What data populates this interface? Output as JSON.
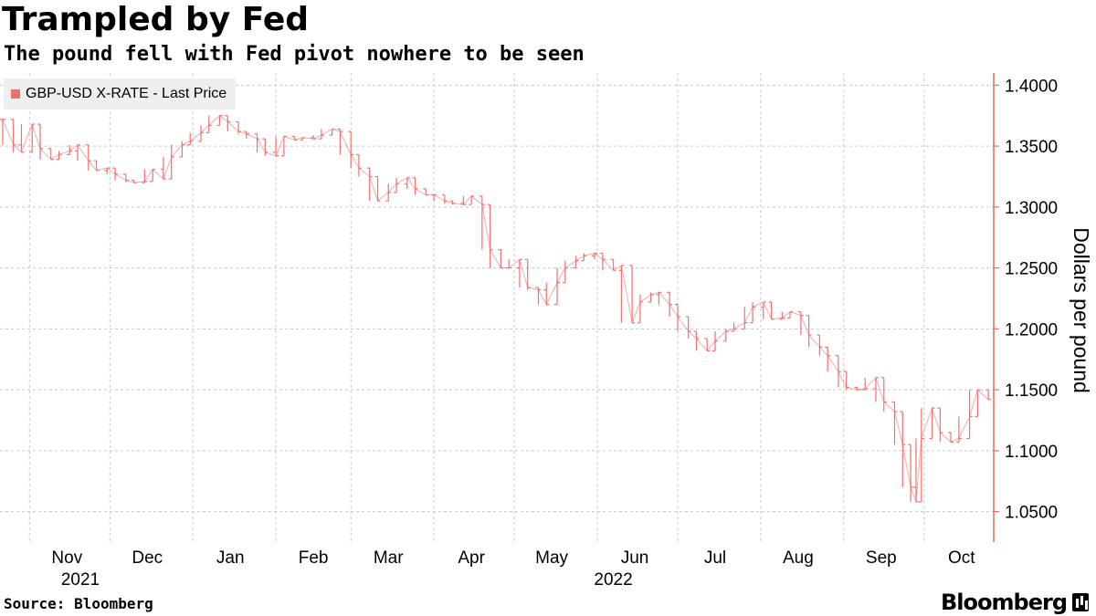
{
  "header": {
    "title": "Trampled by Fed",
    "subtitle": "The pound fell with Fed pivot nowhere to be seen"
  },
  "footer": {
    "source": "Source: Bloomberg",
    "brand": "Bloomberg"
  },
  "colors": {
    "series": "#f07070",
    "axis": "#e86a6a",
    "grid": "#c8c8c8"
  },
  "chart_data": {
    "type": "line",
    "title": "Trampled by Fed",
    "subtitle": "The pound fell with Fed pivot nowhere to be seen",
    "xlabel": "",
    "ylabel": "Dollars per pound",
    "ylim": [
      1.025,
      1.41
    ],
    "xlim": [
      "2021-10-21",
      "2022-10-27"
    ],
    "grid": true,
    "legend_position": "top-left",
    "y_ticks": [
      "1.4000",
      "1.3500",
      "1.3000",
      "1.2500",
      "1.2000",
      "1.1500",
      "1.1000",
      "1.0500"
    ],
    "y_tick_values": [
      1.4,
      1.35,
      1.3,
      1.25,
      1.2,
      1.15,
      1.1,
      1.05
    ],
    "x_ticks": [
      {
        "label": "Nov",
        "date": "2021-11-15"
      },
      {
        "label": "Dec",
        "date": "2021-12-15"
      },
      {
        "label": "Jan",
        "date": "2022-01-15"
      },
      {
        "label": "Feb",
        "date": "2022-02-15"
      },
      {
        "label": "Mar",
        "date": "2022-03-15"
      },
      {
        "label": "Apr",
        "date": "2022-04-15"
      },
      {
        "label": "May",
        "date": "2022-05-15"
      },
      {
        "label": "Jun",
        "date": "2022-06-15"
      },
      {
        "label": "Jul",
        "date": "2022-07-15"
      },
      {
        "label": "Aug",
        "date": "2022-08-15"
      },
      {
        "label": "Sep",
        "date": "2022-09-15"
      },
      {
        "label": "Oct",
        "date": "2022-10-15"
      }
    ],
    "gridlines_x": [
      "2021-11-01",
      "2021-12-01",
      "2022-01-01",
      "2022-02-01",
      "2022-03-01",
      "2022-04-01",
      "2022-05-01",
      "2022-06-01",
      "2022-07-01",
      "2022-08-01",
      "2022-09-01",
      "2022-10-01"
    ],
    "year_labels": [
      {
        "label": "2021",
        "date": "2021-11-20"
      },
      {
        "label": "2022",
        "date": "2022-06-07"
      }
    ],
    "series": [
      {
        "name": "GBP-USD X-RATE - Last Price",
        "x": [
          "2021-10-22",
          "2021-10-26",
          "2021-10-29",
          "2021-11-02",
          "2021-11-05",
          "2021-11-09",
          "2021-11-12",
          "2021-11-16",
          "2021-11-19",
          "2021-11-23",
          "2021-11-26",
          "2021-11-30",
          "2021-12-03",
          "2021-12-07",
          "2021-12-10",
          "2021-12-14",
          "2021-12-17",
          "2021-12-21",
          "2021-12-24",
          "2021-12-28",
          "2021-12-31",
          "2022-01-04",
          "2022-01-07",
          "2022-01-11",
          "2022-01-14",
          "2022-01-18",
          "2022-01-21",
          "2022-01-25",
          "2022-01-28",
          "2022-02-01",
          "2022-02-04",
          "2022-02-08",
          "2022-02-11",
          "2022-02-15",
          "2022-02-18",
          "2022-02-22",
          "2022-02-25",
          "2022-03-01",
          "2022-03-04",
          "2022-03-08",
          "2022-03-11",
          "2022-03-15",
          "2022-03-18",
          "2022-03-22",
          "2022-03-25",
          "2022-03-29",
          "2022-04-01",
          "2022-04-05",
          "2022-04-08",
          "2022-04-12",
          "2022-04-15",
          "2022-04-19",
          "2022-04-22",
          "2022-04-26",
          "2022-04-29",
          "2022-05-03",
          "2022-05-06",
          "2022-05-10",
          "2022-05-13",
          "2022-05-17",
          "2022-05-20",
          "2022-05-24",
          "2022-05-27",
          "2022-05-31",
          "2022-06-03",
          "2022-06-07",
          "2022-06-10",
          "2022-06-14",
          "2022-06-17",
          "2022-06-21",
          "2022-06-24",
          "2022-06-28",
          "2022-07-01",
          "2022-07-05",
          "2022-07-08",
          "2022-07-12",
          "2022-07-15",
          "2022-07-19",
          "2022-07-22",
          "2022-07-26",
          "2022-07-29",
          "2022-08-02",
          "2022-08-05",
          "2022-08-09",
          "2022-08-12",
          "2022-08-16",
          "2022-08-19",
          "2022-08-23",
          "2022-08-26",
          "2022-08-30",
          "2022-09-02",
          "2022-09-06",
          "2022-09-09",
          "2022-09-13",
          "2022-09-16",
          "2022-09-20",
          "2022-09-23",
          "2022-09-26",
          "2022-09-28",
          "2022-09-30",
          "2022-10-04",
          "2022-10-07",
          "2022-10-11",
          "2022-10-14",
          "2022-10-18",
          "2022-10-21",
          "2022-10-25"
        ],
        "y": [
          1.372,
          1.351,
          1.345,
          1.368,
          1.348,
          1.339,
          1.343,
          1.346,
          1.351,
          1.338,
          1.33,
          1.332,
          1.327,
          1.322,
          1.32,
          1.321,
          1.331,
          1.323,
          1.341,
          1.351,
          1.354,
          1.361,
          1.367,
          1.375,
          1.37,
          1.362,
          1.36,
          1.356,
          1.345,
          1.342,
          1.358,
          1.355,
          1.357,
          1.356,
          1.359,
          1.364,
          1.362,
          1.343,
          1.332,
          1.325,
          1.305,
          1.312,
          1.319,
          1.324,
          1.315,
          1.31,
          1.31,
          1.305,
          1.303,
          1.302,
          1.309,
          1.302,
          1.265,
          1.25,
          1.25,
          1.257,
          1.234,
          1.232,
          1.22,
          1.238,
          1.25,
          1.256,
          1.26,
          1.262,
          1.257,
          1.248,
          1.252,
          1.205,
          1.222,
          1.228,
          1.23,
          1.22,
          1.21,
          1.198,
          1.192,
          1.182,
          1.19,
          1.198,
          1.2,
          1.205,
          1.218,
          1.222,
          1.208,
          1.209,
          1.214,
          1.211,
          1.195,
          1.185,
          1.178,
          1.165,
          1.152,
          1.15,
          1.151,
          1.16,
          1.14,
          1.132,
          1.105,
          1.07,
          1.058,
          1.11,
          1.135,
          1.115,
          1.107,
          1.11,
          1.128,
          1.15,
          1.142
        ]
      }
    ]
  }
}
